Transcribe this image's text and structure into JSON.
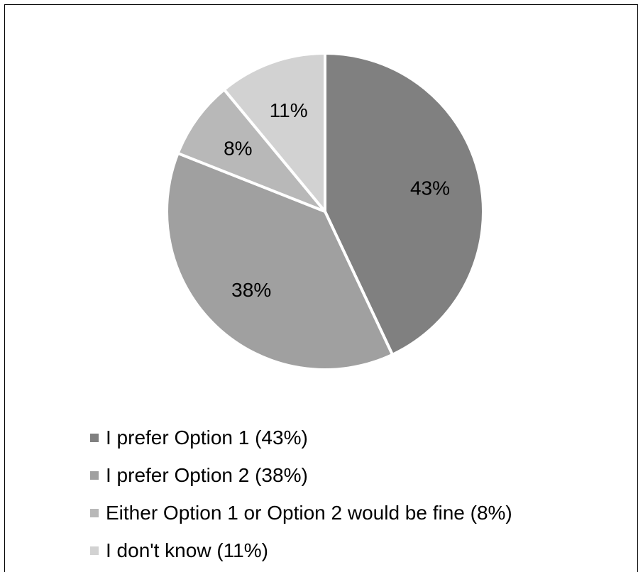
{
  "chart_data": {
    "type": "pie",
    "slices": [
      {
        "label": "I prefer Option 1 (43%)",
        "value": 43,
        "display": "43%",
        "color": "#808080"
      },
      {
        "label": "I prefer Option 2 (38%)",
        "value": 38,
        "display": "38%",
        "color": "#a0a0a0"
      },
      {
        "label": "Either Option 1 or Option 2 would be fine (8%)",
        "value": 8,
        "display": "8%",
        "color": "#b8b8b8"
      },
      {
        "label": "I don't know (11%)",
        "value": 11,
        "display": "11%",
        "color": "#d2d2d2"
      }
    ],
    "legend_position": "bottom"
  }
}
